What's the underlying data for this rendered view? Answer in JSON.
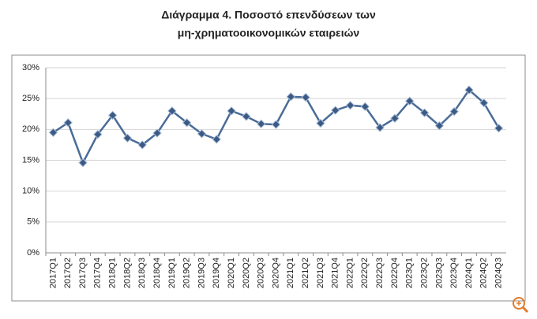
{
  "chart_data": {
    "type": "line",
    "title": [
      "Διάγραμμα 4. Ποσοστό επενδύσεων των",
      "μη-χρηματοοικονομικών εταιρειών"
    ],
    "categories": [
      "2017Q1",
      "2017Q2",
      "2017Q3",
      "2017Q4",
      "2018Q1",
      "2018Q2",
      "2018Q3",
      "2018Q4",
      "2019Q1",
      "2019Q2",
      "2019Q3",
      "2019Q4",
      "2020Q1",
      "2020Q2",
      "2020Q3",
      "2020Q4",
      "2021Q1",
      "2021Q2",
      "2021Q3",
      "2021Q4",
      "2022Q1",
      "2022Q2",
      "2022Q3",
      "2022Q4",
      "2023Q1",
      "2023Q2",
      "2023Q3",
      "2023Q4",
      "2024Q1",
      "2024Q2",
      "2024Q3"
    ],
    "values": [
      19.5,
      21.1,
      14.6,
      19.2,
      22.3,
      18.6,
      17.5,
      19.4,
      23.0,
      21.1,
      19.3,
      18.4,
      23.0,
      22.1,
      20.9,
      20.8,
      25.3,
      25.2,
      21.0,
      23.1,
      23.9,
      23.7,
      20.3,
      21.8,
      24.6,
      22.7,
      20.6,
      22.9,
      26.4,
      24.3,
      20.2
    ],
    "color": "#4a6c98",
    "ylim": [
      0,
      30
    ],
    "yticks": [
      {
        "value": 0,
        "label": "0%"
      },
      {
        "value": 5,
        "label": "5%"
      },
      {
        "value": 10,
        "label": "10%"
      },
      {
        "value": 15,
        "label": "15%"
      },
      {
        "value": 20,
        "label": "20%"
      },
      {
        "value": 25,
        "label": "25%"
      },
      {
        "value": 30,
        "label": "30%"
      }
    ],
    "grid": true
  }
}
